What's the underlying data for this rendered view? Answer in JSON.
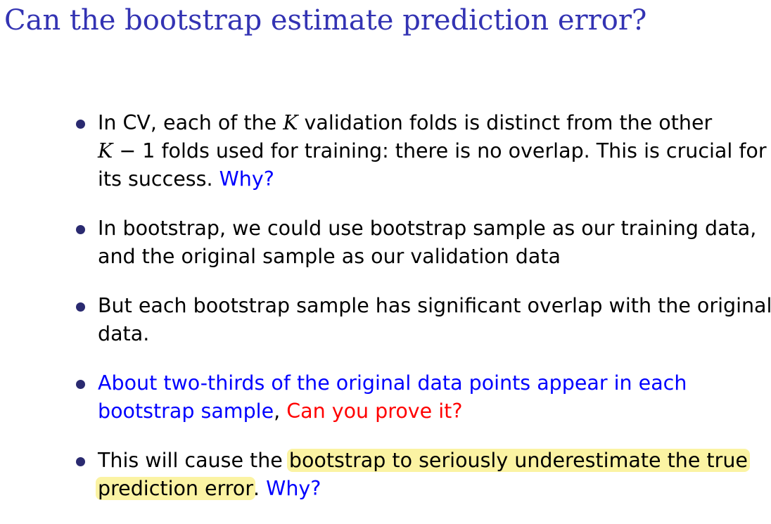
{
  "slide": {
    "title": "Can the bootstrap estimate prediction error?",
    "colors": {
      "title": "#3333b3",
      "emphasis_blue": "#0000ff",
      "emphasis_red": "#ff0000",
      "highlight": "#fbf3a3"
    },
    "bullets": [
      {
        "line1_a": "In CV, each of the ",
        "line1_var": "K",
        "line1_b": " validation folds is distinct from the other",
        "line2_var": "K",
        "line2_b": " − 1 folds used for training: there is no overlap. This is crucial for",
        "line3_a": "its success. ",
        "line3_question": "Why?"
      },
      {
        "line1": "In bootstrap, we could use bootstrap sample as our training data,",
        "line2": "and the original sample as our validation data"
      },
      {
        "line1": "But each bootstrap sample has significant overlap with the original",
        "line2": "data."
      },
      {
        "line1_blue": "About two-thirds of the original data points appear in each",
        "line2_blue": "bootstrap sample",
        "line2_sep": ", ",
        "line2_red": "Can you prove it?"
      },
      {
        "line1_a": "This will cause the ",
        "line1_hl": "bootstrap to seriously underestimate the true",
        "line2_hl": "prediction error",
        "line2_sep": ". ",
        "line2_question": "Why?"
      }
    ]
  }
}
